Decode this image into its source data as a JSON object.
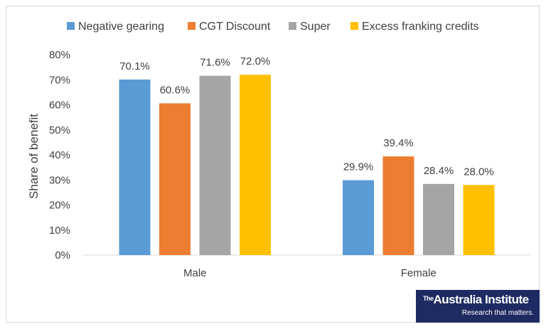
{
  "chart_data": {
    "type": "bar",
    "categories": [
      "Male",
      "Female"
    ],
    "series": [
      {
        "name": "Negative gearing",
        "color": "#5b9bd5",
        "values": [
          70.1,
          29.9
        ]
      },
      {
        "name": "CGT Discount",
        "color": "#ed7d31",
        "values": [
          60.6,
          39.4
        ]
      },
      {
        "name": "Super",
        "color": "#a5a5a5",
        "values": [
          71.6,
          28.4
        ]
      },
      {
        "name": "Excess franking credits",
        "color": "#ffc000",
        "values": [
          72.0,
          28.0
        ]
      }
    ],
    "ylabel": "Share of benefit",
    "ylim": [
      0,
      80
    ],
    "yticks": [
      "0%",
      "10%",
      "20%",
      "30%",
      "40%",
      "50%",
      "60%",
      "70%",
      "80%"
    ],
    "data_labels": [
      [
        "70.1%",
        "29.9%"
      ],
      [
        "60.6%",
        "39.4%"
      ],
      [
        "71.6%",
        "28.4%"
      ],
      [
        "72.0%",
        "28.0%"
      ]
    ],
    "legend_position": "top",
    "grid": false
  },
  "logo": {
    "the": "The",
    "name": "Australia Institute",
    "tagline": "Research that matters."
  }
}
